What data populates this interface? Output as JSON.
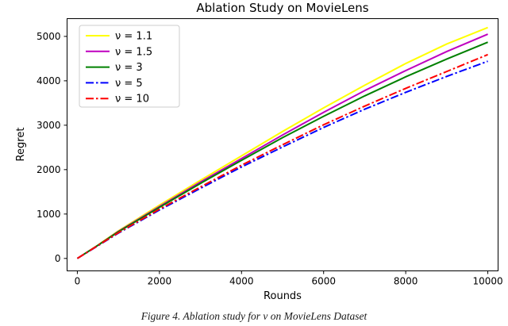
{
  "figure": {
    "caption": "Figure 4. Ablation study for ν on MovieLens Dataset"
  },
  "chart_data": {
    "type": "line",
    "title": "Ablation Study on MovieLens",
    "xlabel": "Rounds",
    "ylabel": "Regret",
    "xlim": [
      -250,
      10250
    ],
    "ylim": [
      -280,
      5400
    ],
    "xticks": [
      0,
      2000,
      4000,
      6000,
      8000,
      10000
    ],
    "yticks": [
      0,
      1000,
      2000,
      3000,
      4000,
      5000
    ],
    "grid": false,
    "legend_position": "upper left",
    "x": [
      0,
      500,
      1000,
      2000,
      3000,
      4000,
      5000,
      6000,
      7000,
      8000,
      9000,
      10000
    ],
    "series": [
      {
        "name": "ν = 1.1",
        "color": "#ffff00",
        "dash": "solid",
        "values": [
          0,
          300,
          620,
          1200,
          1760,
          2310,
          2860,
          3390,
          3900,
          4390,
          4830,
          5200
        ]
      },
      {
        "name": "ν = 1.5",
        "color": "#bf00bf",
        "dash": "solid",
        "values": [
          0,
          295,
          610,
          1170,
          1720,
          2250,
          2780,
          3290,
          3780,
          4230,
          4660,
          5050
        ]
      },
      {
        "name": "ν = 3",
        "color": "#008000",
        "dash": "solid",
        "values": [
          0,
          295,
          600,
          1150,
          1690,
          2210,
          2720,
          3200,
          3660,
          4090,
          4490,
          4870
        ]
      },
      {
        "name": "ν = 5",
        "color": "#0000ff",
        "dash": "dashdot",
        "values": [
          0,
          285,
          570,
          1090,
          1580,
          2060,
          2510,
          2950,
          3360,
          3740,
          4100,
          4440
        ]
      },
      {
        "name": "ν = 10",
        "color": "#ff0000",
        "dash": "dashdot",
        "values": [
          0,
          290,
          580,
          1110,
          1610,
          2100,
          2560,
          3010,
          3430,
          3830,
          4210,
          4590
        ]
      }
    ]
  }
}
